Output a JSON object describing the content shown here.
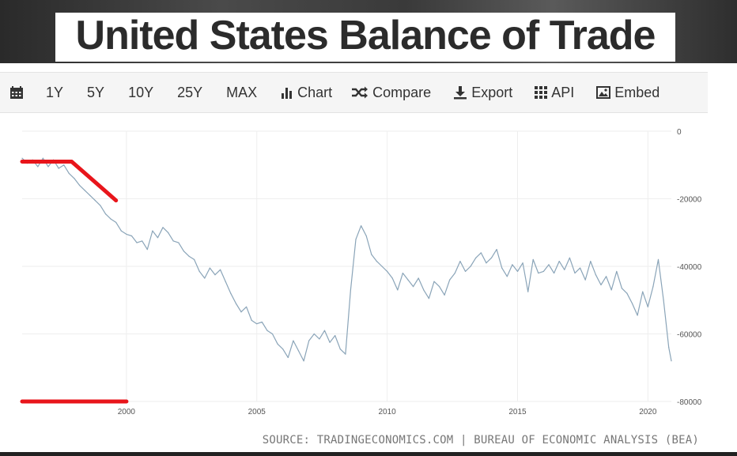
{
  "title": "United States Balance of Trade",
  "toolbar": {
    "calendar_icon": "calendar-icon",
    "ranges": [
      "1Y",
      "5Y",
      "10Y",
      "25Y",
      "MAX"
    ],
    "chart_label": "Chart",
    "compare_label": "Compare",
    "export_label": "Export",
    "api_label": "API",
    "embed_label": "Embed"
  },
  "source": "SOURCE: TRADINGECONOMICS.COM | BUREAU OF ECONOMIC ANALYSIS (BEA)",
  "colors": {
    "line": "#8aa4b8",
    "annotation": "#e8151b",
    "grid": "#eeeeee",
    "tick_text": "#555555"
  },
  "chart_data": {
    "type": "line",
    "title": "United States Balance of Trade",
    "xlabel": "",
    "ylabel": "",
    "xlim": [
      1996.0,
      2020.9
    ],
    "ylim": [
      -80000,
      0
    ],
    "x_ticks": [
      2000,
      2005,
      2010,
      2015,
      2020
    ],
    "x_tick_labels": [
      "2000",
      "2005",
      "2010",
      "2015",
      "2020"
    ],
    "y_ticks": [
      0,
      -20000,
      -40000,
      -60000,
      -80000
    ],
    "y_tick_labels": [
      "0",
      "-20000",
      "-40000",
      "-60000",
      "-80000"
    ],
    "grid": true,
    "series": [
      {
        "x": [
          1996.0,
          1996.2,
          1996.4,
          1996.6,
          1996.8,
          1997.0,
          1997.2,
          1997.4,
          1997.6,
          1997.8,
          1998.0,
          1998.2,
          1998.4,
          1998.6,
          1998.8,
          1999.0,
          1999.2,
          1999.4,
          1999.6,
          1999.8,
          2000.0,
          2000.2,
          2000.4,
          2000.6,
          2000.8,
          2001.0,
          2001.2,
          2001.4,
          2001.6,
          2001.8,
          2002.0,
          2002.2,
          2002.4,
          2002.6,
          2002.8,
          2003.0,
          2003.2,
          2003.4,
          2003.6,
          2003.8,
          2004.0,
          2004.2,
          2004.4,
          2004.6,
          2004.8,
          2005.0,
          2005.2,
          2005.4,
          2005.6,
          2005.8,
          2006.0,
          2006.2,
          2006.4,
          2006.6,
          2006.8,
          2007.0,
          2007.2,
          2007.4,
          2007.6,
          2007.8,
          2008.0,
          2008.2,
          2008.4,
          2008.6,
          2008.8,
          2009.0,
          2009.2,
          2009.4,
          2009.6,
          2009.8,
          2010.0,
          2010.2,
          2010.4,
          2010.6,
          2010.8,
          2011.0,
          2011.2,
          2011.4,
          2011.6,
          2011.8,
          2012.0,
          2012.2,
          2012.4,
          2012.6,
          2012.8,
          2013.0,
          2013.2,
          2013.4,
          2013.6,
          2013.8,
          2014.0,
          2014.2,
          2014.4,
          2014.6,
          2014.8,
          2015.0,
          2015.2,
          2015.4,
          2015.6,
          2015.8,
          2016.0,
          2016.2,
          2016.4,
          2016.6,
          2016.8,
          2017.0,
          2017.2,
          2017.4,
          2017.6,
          2017.8,
          2018.0,
          2018.2,
          2018.4,
          2018.6,
          2018.8,
          2019.0,
          2019.2,
          2019.4,
          2019.6,
          2019.8,
          2020.0,
          2020.2,
          2020.4,
          2020.6,
          2020.8,
          2020.9
        ],
        "y": [
          -8000,
          -9500,
          -8500,
          -10500,
          -8000,
          -10500,
          -8500,
          -11000,
          -10000,
          -12500,
          -14000,
          -16000,
          -17500,
          -19000,
          -20500,
          -22000,
          -24500,
          -26000,
          -27000,
          -29500,
          -30500,
          -31000,
          -33000,
          -32500,
          -35000,
          -29500,
          -31500,
          -28500,
          -30000,
          -32500,
          -33000,
          -35500,
          -37000,
          -38000,
          -41500,
          -43500,
          -40500,
          -42500,
          -41000,
          -44500,
          -48000,
          -51000,
          -53500,
          -52000,
          -56000,
          -57000,
          -56500,
          -59000,
          -60000,
          -63000,
          -64500,
          -67000,
          -62000,
          -65000,
          -68000,
          -62000,
          -60000,
          -61500,
          -59000,
          -62500,
          -60500,
          -64500,
          -66000,
          -47000,
          -32000,
          -28000,
          -31000,
          -36500,
          -38500,
          -40000,
          -41500,
          -43500,
          -47000,
          -42000,
          -44000,
          -46000,
          -43500,
          -47000,
          -49500,
          -44500,
          -46000,
          -48500,
          -44000,
          -42000,
          -38500,
          -41500,
          -40000,
          -37500,
          -36000,
          -39000,
          -37500,
          -35000,
          -40500,
          -43000,
          -39500,
          -41500,
          -39000,
          -47500,
          -38000,
          -42000,
          -41500,
          -39500,
          -42000,
          -38500,
          -41000,
          -37500,
          -42000,
          -40500,
          -44000,
          -38500,
          -42500,
          -45500,
          -43000,
          -47000,
          -41500,
          -46500,
          -48000,
          -51000,
          -54500,
          -47500,
          -52000,
          -46000,
          -38000,
          -50000,
          -64000,
          -68000
        ]
      }
    ],
    "annotations": [
      {
        "type": "red-line",
        "points": [
          [
            1996.0,
            -9000
          ],
          [
            1997.9,
            -9000
          ],
          [
            1999.6,
            -20500
          ]
        ]
      },
      {
        "type": "red-line",
        "points": [
          [
            1996.0,
            -80000
          ],
          [
            2000.0,
            -80000
          ]
        ]
      }
    ]
  }
}
